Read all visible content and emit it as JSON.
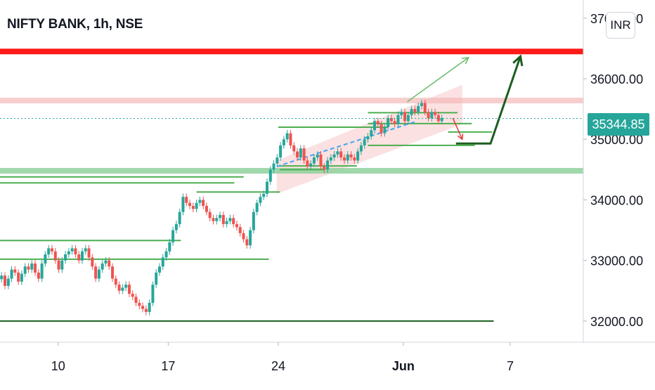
{
  "header": {
    "title": "NIFTY BANK, 1h, NSE",
    "currency": "INR"
  },
  "colors": {
    "up": "#26a69a",
    "down": "#ef5350",
    "resistance": "#ff1a1a",
    "support_zone": "#8fd19e",
    "level": "#4caf50",
    "dark_level": "#1b5e20",
    "channel": "#f8c8c8",
    "band": "#f4b8b8",
    "last_price_line": "#26a69a"
  },
  "chart_data": {
    "type": "candlestick",
    "symbol": "NIFTY BANK",
    "interval": "1h",
    "exchange": "NSE",
    "last_price": "35344.85",
    "y_ticks": [
      "32000.00",
      "33000.00",
      "34000.00",
      "35000.00",
      "36000.00",
      "37000.00"
    ],
    "x_ticks": [
      {
        "label": "10",
        "day": 10
      },
      {
        "label": "17",
        "day": 17
      },
      {
        "label": "24",
        "day": 24
      },
      {
        "label": "Jun",
        "day": 31.95
      },
      {
        "label": "7",
        "day": 38.75
      }
    ],
    "ylim": [
      31650,
      37300
    ],
    "xlim": [
      6.3,
      43.4
    ],
    "closes": [
      32750,
      32580,
      32700,
      32850,
      32800,
      32650,
      32780,
      32900,
      32850,
      32950,
      32800,
      32700,
      32950,
      33100,
      33200,
      33150,
      33000,
      32850,
      33000,
      33100,
      33150,
      33200,
      33100,
      33000,
      33150,
      33200,
      33050,
      32900,
      32700,
      32850,
      32950,
      33000,
      32900,
      32700,
      32600,
      32500,
      32550,
      32600,
      32450,
      32400,
      32300,
      32250,
      32200,
      32150,
      32300,
      32600,
      32800,
      32900,
      33050,
      33150,
      33300,
      33500,
      33600,
      33800,
      34050,
      33950,
      33900,
      33850,
      33950,
      34000,
      33900,
      33800,
      33700,
      33650,
      33700,
      33750,
      33600,
      33650,
      33700,
      33600,
      33550,
      33450,
      33350,
      33250,
      33500,
      33800,
      33950,
      34050,
      34100,
      34300,
      34500,
      34600,
      34700,
      34900,
      35000,
      35100,
      34900,
      34800,
      34700,
      34850,
      34650,
      34550,
      34600,
      34700,
      34750,
      34550,
      34500,
      34650,
      34700,
      34750,
      34800,
      34700,
      34650,
      34750,
      34700,
      34650,
      34800,
      34900,
      35000,
      35050,
      35150,
      35300,
      35250,
      35100,
      35200,
      35350,
      35300,
      35250,
      35400,
      35450,
      35300,
      35400,
      35500,
      35450,
      35550,
      35600,
      35450,
      35350,
      35450,
      35400,
      35300,
      35350
    ],
    "levels": [
      {
        "name": "resistance",
        "value": 36450,
        "from": 6.3,
        "to": 43.4
      },
      {
        "name": "upper-band",
        "value": 35640,
        "from": 6.3,
        "to": 43.4
      },
      {
        "name": "support-zone",
        "value": 34480,
        "from": 6.3,
        "to": 43.4
      },
      {
        "name": "base-line",
        "value": 32000,
        "from": 6.3,
        "to": 37.7
      }
    ]
  }
}
